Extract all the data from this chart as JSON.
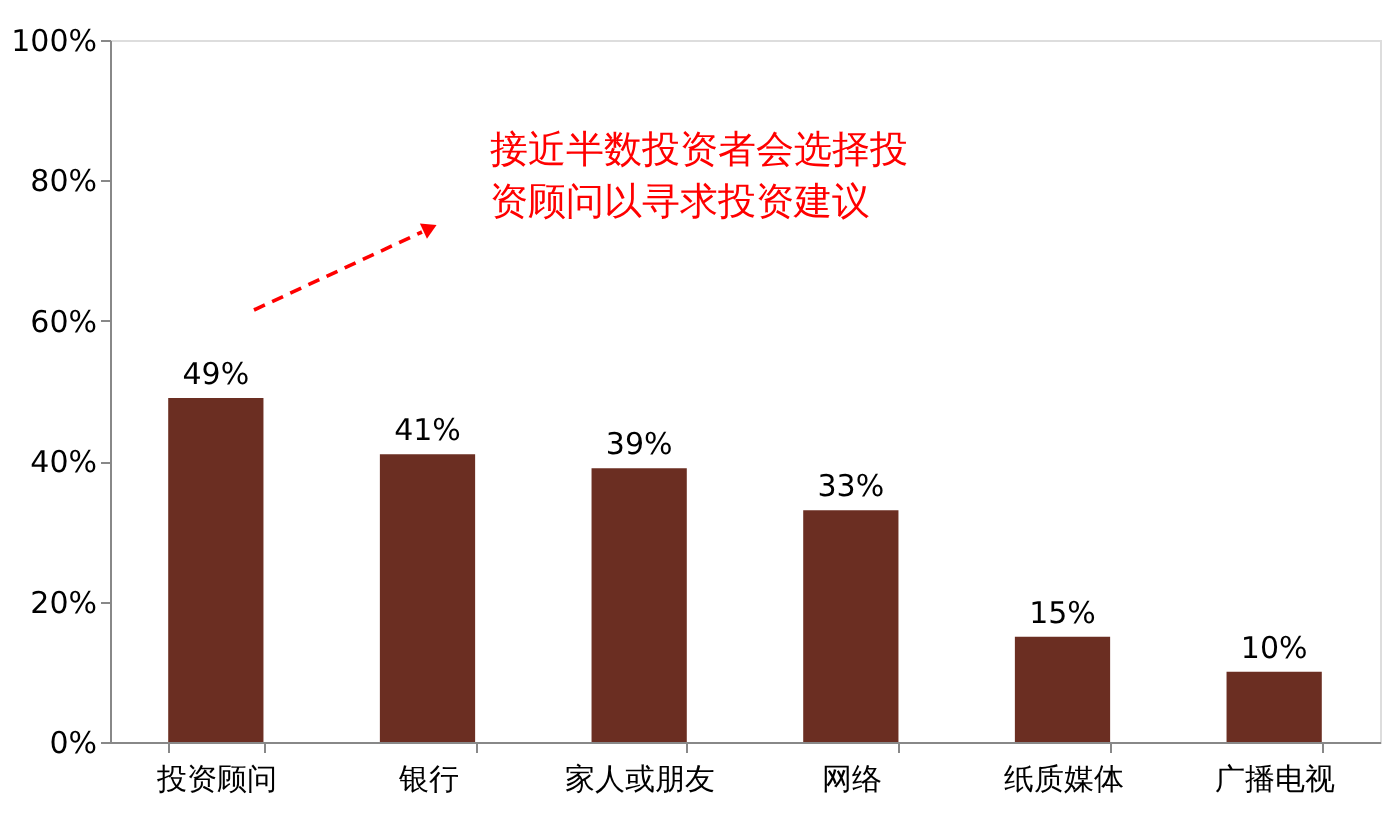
{
  "chart_data": {
    "type": "bar",
    "categories": [
      "投资顾问",
      "银行",
      "家人或朋友",
      "网络",
      "纸质媒体",
      "广播电视"
    ],
    "values": [
      49,
      41,
      39,
      33,
      15,
      10
    ],
    "color": "#6b2e22",
    "value_labels": [
      "49%",
      "41%",
      "39%",
      "33%",
      "15%",
      "10%"
    ],
    "ylim": [
      0,
      100
    ],
    "yticks": [
      {
        "value": 0,
        "label": "0%"
      },
      {
        "value": 20,
        "label": "20%"
      },
      {
        "value": 40,
        "label": "40%"
      },
      {
        "value": 60,
        "label": "60%"
      },
      {
        "value": 80,
        "label": "80%"
      },
      {
        "value": 100,
        "label": "100%"
      }
    ],
    "annotations": [
      "接近半数投资者会选择投资顾问以寻求投资建议"
    ],
    "grid": false
  }
}
